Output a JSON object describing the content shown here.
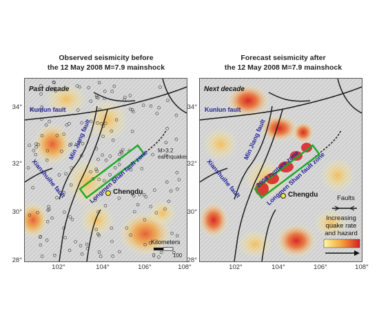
{
  "left_panel": {
    "title_line1": "Observed seismicity before",
    "title_line2": "the 12 May 2008 M=7.9 mainshock",
    "decade_label": "Past decade",
    "labels": {
      "kunlun": "Kunlun fault",
      "minjiang": "Min Jiang fault",
      "longmen": "Longmen Shan fault zone",
      "xianshuihe": "Xianshuihe fault",
      "chengdu": "Chengdu",
      "quake_line1": "M>3.2",
      "quake_line2": "earthquakes"
    },
    "scale": {
      "title": "Kilometers",
      "min": "0",
      "max": "100"
    }
  },
  "right_panel": {
    "title_line1": "Forecast seismicity after",
    "title_line2": "the 12 May 2008 M=7.9 mainshock",
    "decade_label": "Next decade",
    "labels": {
      "kunlun": "Kunlun fault",
      "minjiang": "Min Jiang fault",
      "longmen": "Longmen Shan fault zone",
      "xianshuihe": "Xianshuihe fault",
      "chengdu": "Chengdu",
      "rupture": "2008 rupture zone"
    },
    "legend": {
      "faults": "Faults",
      "hazard_line1": "Increasing",
      "hazard_line2": "quake rate",
      "hazard_line3": "and hazard"
    }
  },
  "axes": {
    "y_ticks": [
      "34°",
      "32°",
      "30°",
      "28°"
    ],
    "left_x_ticks": [
      "102°",
      "104°",
      "106°",
      "108°"
    ],
    "right_x_ticks": [
      "102°",
      "104°",
      "106°",
      "108°"
    ]
  },
  "colors": {
    "fault": "#1a1a1a",
    "rupture_box": "#1fa82a",
    "label_blue": "#22229a",
    "hazard_low": "#fff7a0",
    "hazard_mid": "#f5a33a",
    "hazard_high": "#d81e1e"
  }
}
